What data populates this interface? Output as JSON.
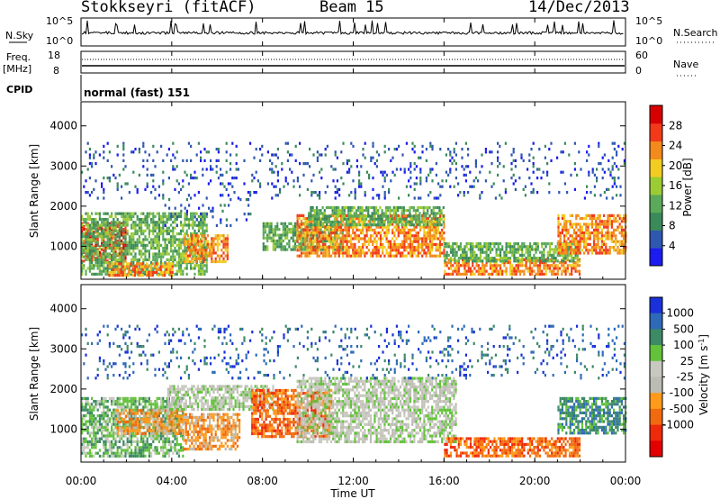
{
  "header": {
    "title": "Stokkseyri (fitACF)",
    "beam": "Beam 15",
    "date": "14/Dec/2013"
  },
  "colors": {
    "power_scale": [
      "#1c1cf0",
      "#2e58b0",
      "#3b8a5a",
      "#5aaa5a",
      "#9ccc33",
      "#f2cc22",
      "#f28a1c",
      "#f23a1a",
      "#d70000"
    ],
    "velocity_scale": [
      "#1a30d8",
      "#2e6ab8",
      "#3d8a66",
      "#62c23a",
      "#c8c8c0",
      "#bcbcb4",
      "#ff9a1a",
      "#f26a0f",
      "#ee2a0a",
      "#e20000"
    ],
    "axes": "#000000"
  },
  "chart_data": [
    {
      "type": "line",
      "name": "noise-panel",
      "left_labels": [
        "N.Sky"
      ],
      "right_labels": [
        "N.Search"
      ],
      "left_ticks": [
        "10^5",
        "10^0"
      ],
      "right_ticks": [
        "10^5",
        "10^0"
      ]
    },
    {
      "type": "line",
      "name": "frequency-nave-panel",
      "left_labels": [
        "Freq.",
        "[MHz]"
      ],
      "right_labels": [
        "Nave"
      ],
      "left_ticks": [
        "18",
        "8"
      ],
      "right_ticks": [
        "60",
        "0"
      ]
    },
    {
      "type": "table",
      "name": "cpid-panel",
      "label": "CPID",
      "text": "normal (fast) 151"
    },
    {
      "type": "heatmap",
      "name": "power-panel",
      "ylabel": "Slant Range [km]",
      "yticks": [
        1000,
        2000,
        3000,
        4000
      ],
      "ylim": [
        180,
        4600
      ],
      "xlim": [
        0,
        24
      ],
      "colorbar": {
        "label": "Power [dB]",
        "ticks": [
          4,
          8,
          12,
          16,
          20,
          24,
          28
        ],
        "range": [
          0,
          32
        ]
      },
      "bands": [
        {
          "t0": 0.0,
          "t1": 2.0,
          "r0": 650,
          "r1": 1600,
          "level": 7
        },
        {
          "t0": 0.0,
          "t1": 5.5,
          "r0": 300,
          "r1": 1850,
          "level": 3
        },
        {
          "t0": 1.2,
          "t1": 4.0,
          "r0": 300,
          "r1": 600,
          "level": 6
        },
        {
          "t0": 3.5,
          "t1": 7.5,
          "r0": 1500,
          "r1": 2200,
          "level": 1
        },
        {
          "t0": 4.5,
          "t1": 6.5,
          "r0": 600,
          "r1": 1300,
          "level": 6
        },
        {
          "t0": 8.0,
          "t1": 11.5,
          "r0": 900,
          "r1": 1600,
          "level": 3
        },
        {
          "t0": 9.5,
          "t1": 16.0,
          "r0": 750,
          "r1": 1800,
          "level": 6
        },
        {
          "t0": 10.0,
          "t1": 16.0,
          "r0": 1500,
          "r1": 2000,
          "level": 3
        },
        {
          "t0": 16.0,
          "t1": 22.0,
          "r0": 300,
          "r1": 700,
          "level": 6
        },
        {
          "t0": 16.0,
          "t1": 22.0,
          "r0": 650,
          "r1": 1100,
          "level": 3
        },
        {
          "t0": 21.0,
          "t1": 24.0,
          "r0": 850,
          "r1": 1800,
          "level": 6
        },
        {
          "t0": 0.0,
          "t1": 24.0,
          "r0": 2200,
          "r1": 3600,
          "level": 1
        }
      ]
    },
    {
      "type": "heatmap",
      "name": "velocity-panel",
      "ylabel": "Slant Range [km]",
      "yticks": [
        1000,
        2000,
        3000,
        4000
      ],
      "ylim": [
        180,
        4600
      ],
      "xlim": [
        0,
        24
      ],
      "xticks": [
        "00:00",
        "04:00",
        "08:00",
        "12:00",
        "16:00",
        "20:00",
        "00:00"
      ],
      "xlabel": "Time UT",
      "colorbar": {
        "label": "Velocity [m s^-1]",
        "ticks": [
          1000,
          500,
          100,
          25,
          -25,
          -100,
          -500,
          -1000
        ]
      },
      "bands": [
        {
          "t0": 0.0,
          "t1": 4.5,
          "r0": 300,
          "r1": 1800,
          "level": 3
        },
        {
          "t0": 1.5,
          "t1": 4.5,
          "r0": 900,
          "r1": 1500,
          "level": 6
        },
        {
          "t0": 3.8,
          "t1": 8.5,
          "r0": 1500,
          "r1": 2100,
          "level": 4
        },
        {
          "t0": 4.5,
          "t1": 7.0,
          "r0": 500,
          "r1": 1400,
          "level": 6
        },
        {
          "t0": 7.5,
          "t1": 11.0,
          "r0": 800,
          "r1": 2000,
          "level": 7
        },
        {
          "t0": 9.5,
          "t1": 16.5,
          "r0": 700,
          "r1": 2300,
          "level": 4
        },
        {
          "t0": 16.0,
          "t1": 22.0,
          "r0": 300,
          "r1": 800,
          "level": 7
        },
        {
          "t0": 21.0,
          "t1": 24.0,
          "r0": 900,
          "r1": 1800,
          "level": 2
        },
        {
          "t0": 0.0,
          "t1": 24.0,
          "r0": 2300,
          "r1": 3600,
          "level": 1
        }
      ]
    }
  ]
}
